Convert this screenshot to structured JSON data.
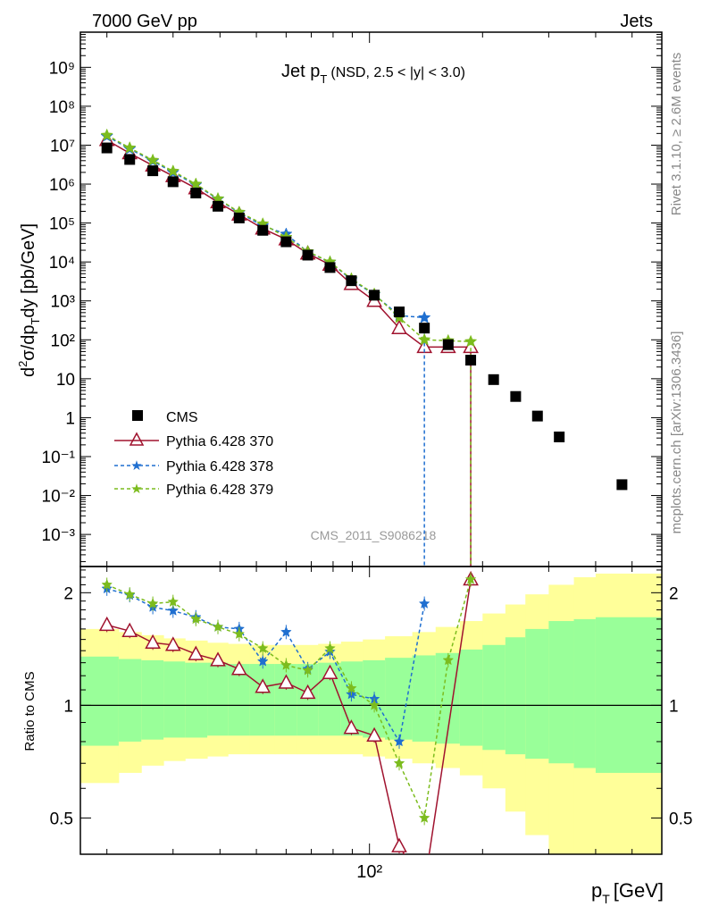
{
  "header": {
    "left": "7000 GeV pp",
    "right": "Jets"
  },
  "side_labels": {
    "rivet": "Rivet 3.1.10, ≥ 2.6M events",
    "mcplots": "mcplots.cern.ch [arXiv:1306.3436]"
  },
  "watermark": "CMS_2011_S9086218",
  "chart_data": [
    {
      "type": "scatter",
      "title": "Jet p_T (NSD, 2.5 < |y| < 3.0)",
      "title_main": "Jet p",
      "title_sub": "T",
      "title_rest": "(NSD, 2.5 < |y| < 3.0)",
      "ylabel": "d²σ/dp_T dy [pb/GeV]",
      "xlabel": "p_T [GeV]",
      "xscale": "log",
      "yscale": "log",
      "xlim": [
        17,
        600
      ],
      "ylim": [
        0.00015,
        8000000000.0
      ],
      "legend_position": "lower-left",
      "y_tick_labels": [
        "10⁻³",
        "10⁻²",
        "10⁻¹",
        "1",
        "10",
        "10²",
        "10³",
        "10⁴",
        "10⁵",
        "10⁶",
        "10⁷",
        "10⁸",
        "10⁹"
      ],
      "x_tick_label": "10²",
      "series": [
        {
          "name": "CMS",
          "color": "#000000",
          "marker": "square",
          "x": [
            20,
            23,
            26.5,
            30,
            34.5,
            39.5,
            45,
            52,
            60,
            68.5,
            78.5,
            89.5,
            103,
            120,
            140,
            162,
            186,
            214,
            245,
            280,
            320,
            470
          ],
          "y": [
            8500000,
            4300000,
            2200000,
            1150000,
            590000,
            270000,
            135000,
            65000,
            33000,
            15000,
            7200,
            3300,
            1400,
            520,
            200,
            75,
            30,
            9.5,
            3.5,
            1.1,
            0.32,
            0.019
          ]
        },
        {
          "name": "Pythia 6.428 370",
          "color": "#a0122e",
          "marker": "triangle",
          "x": [
            20,
            23,
            26.5,
            30,
            34.5,
            39.5,
            45,
            52,
            60,
            68.5,
            78.5,
            89.5,
            103,
            120,
            140,
            162,
            186
          ],
          "y": [
            13500000,
            6200000,
            3000000,
            1600000,
            780000,
            340000,
            165000,
            72000,
            38000,
            16500,
            8500,
            2700,
            1000,
            200,
            65,
            65,
            65
          ]
        },
        {
          "name": "Pythia 6.428 378",
          "color": "#1f6fd0",
          "marker": "star",
          "x": [
            20,
            23,
            26.5,
            30,
            34.5,
            39.5,
            45,
            52,
            60,
            68.5,
            78.5,
            89.5,
            103,
            120,
            140
          ],
          "y": [
            17000000,
            8000000,
            3900000,
            2000000,
            950000,
            410000,
            185000,
            85000,
            52000,
            18000,
            9900,
            3500,
            1450,
            420,
            370
          ]
        },
        {
          "name": "Pythia 6.428 379",
          "color": "#7cbc1e",
          "marker": "star",
          "x": [
            20,
            23,
            26.5,
            30,
            34.5,
            39.5,
            45,
            52,
            60,
            68.5,
            78.5,
            89.5,
            103,
            120,
            140,
            162,
            186
          ],
          "y": [
            18000000,
            8500000,
            4100000,
            2150000,
            1000000,
            420000,
            190000,
            95000,
            43000,
            18500,
            10000,
            3700,
            1500,
            370,
            100,
            95,
            90
          ]
        }
      ]
    },
    {
      "type": "line",
      "ylabel": "Ratio to CMS",
      "xscale": "log",
      "yscale": "log",
      "xlim": [
        17,
        600
      ],
      "ylim": [
        0.4,
        2.35
      ],
      "y_tick_labels": [
        "0.5",
        "1",
        "2"
      ],
      "bands": {
        "x_edges": [
          17,
          21.5,
          24.7,
          28.3,
          32.3,
          37,
          42,
          48,
          56,
          64,
          73,
          84,
          96,
          110,
          130,
          150,
          174,
          200,
          230,
          260,
          300,
          350,
          400,
          600
        ],
        "green_low": [
          0.78,
          0.8,
          0.81,
          0.82,
          0.82,
          0.83,
          0.83,
          0.83,
          0.83,
          0.83,
          0.83,
          0.83,
          0.82,
          0.81,
          0.8,
          0.79,
          0.78,
          0.76,
          0.74,
          0.72,
          0.7,
          0.68,
          0.66
        ],
        "green_high": [
          1.35,
          1.33,
          1.32,
          1.31,
          1.3,
          1.3,
          1.29,
          1.29,
          1.29,
          1.29,
          1.3,
          1.31,
          1.32,
          1.34,
          1.36,
          1.38,
          1.41,
          1.45,
          1.52,
          1.6,
          1.68,
          1.7,
          1.72
        ],
        "yellow_low": [
          0.62,
          0.66,
          0.69,
          0.71,
          0.72,
          0.73,
          0.74,
          0.74,
          0.74,
          0.74,
          0.74,
          0.74,
          0.73,
          0.72,
          0.7,
          0.68,
          0.65,
          0.6,
          0.52,
          0.45,
          0.4,
          0.4,
          0.4
        ],
        "yellow_high": [
          1.6,
          1.57,
          1.54,
          1.51,
          1.49,
          1.47,
          1.46,
          1.45,
          1.45,
          1.45,
          1.46,
          1.48,
          1.5,
          1.53,
          1.57,
          1.62,
          1.68,
          1.76,
          1.86,
          1.98,
          2.1,
          2.2,
          2.25
        ]
      },
      "series": [
        {
          "name": "Pythia 6.428 370",
          "color": "#a0122e",
          "x": [
            20,
            23,
            26.5,
            30,
            34.5,
            39.5,
            45,
            52,
            60,
            68.5,
            78.5,
            89.5,
            103,
            120,
            140,
            186
          ],
          "y": [
            1.64,
            1.58,
            1.47,
            1.45,
            1.37,
            1.32,
            1.25,
            1.12,
            1.15,
            1.08,
            1.22,
            0.87,
            0.83,
            0.42,
            0.33,
            2.17
          ]
        },
        {
          "name": "Pythia 6.428 378",
          "color": "#1f6fd0",
          "x": [
            20,
            23,
            26.5,
            30,
            34.5,
            39.5,
            45,
            52,
            60,
            68.5,
            78.5,
            89.5,
            103,
            120,
            140
          ],
          "y": [
            2.05,
            1.97,
            1.83,
            1.79,
            1.72,
            1.62,
            1.6,
            1.31,
            1.57,
            1.25,
            1.39,
            1.07,
            1.04,
            0.8,
            1.87
          ]
        },
        {
          "name": "Pythia 6.428 379",
          "color": "#7cbc1e",
          "x": [
            20,
            23,
            26.5,
            30,
            34.5,
            39.5,
            45,
            52,
            60,
            68.5,
            78.5,
            89.5,
            103,
            120,
            140,
            162,
            186
          ],
          "y": [
            2.1,
            1.98,
            1.87,
            1.89,
            1.7,
            1.62,
            1.55,
            1.42,
            1.28,
            1.24,
            1.42,
            1.11,
            1.0,
            0.7,
            0.5,
            1.32,
            2.17
          ]
        }
      ]
    }
  ]
}
